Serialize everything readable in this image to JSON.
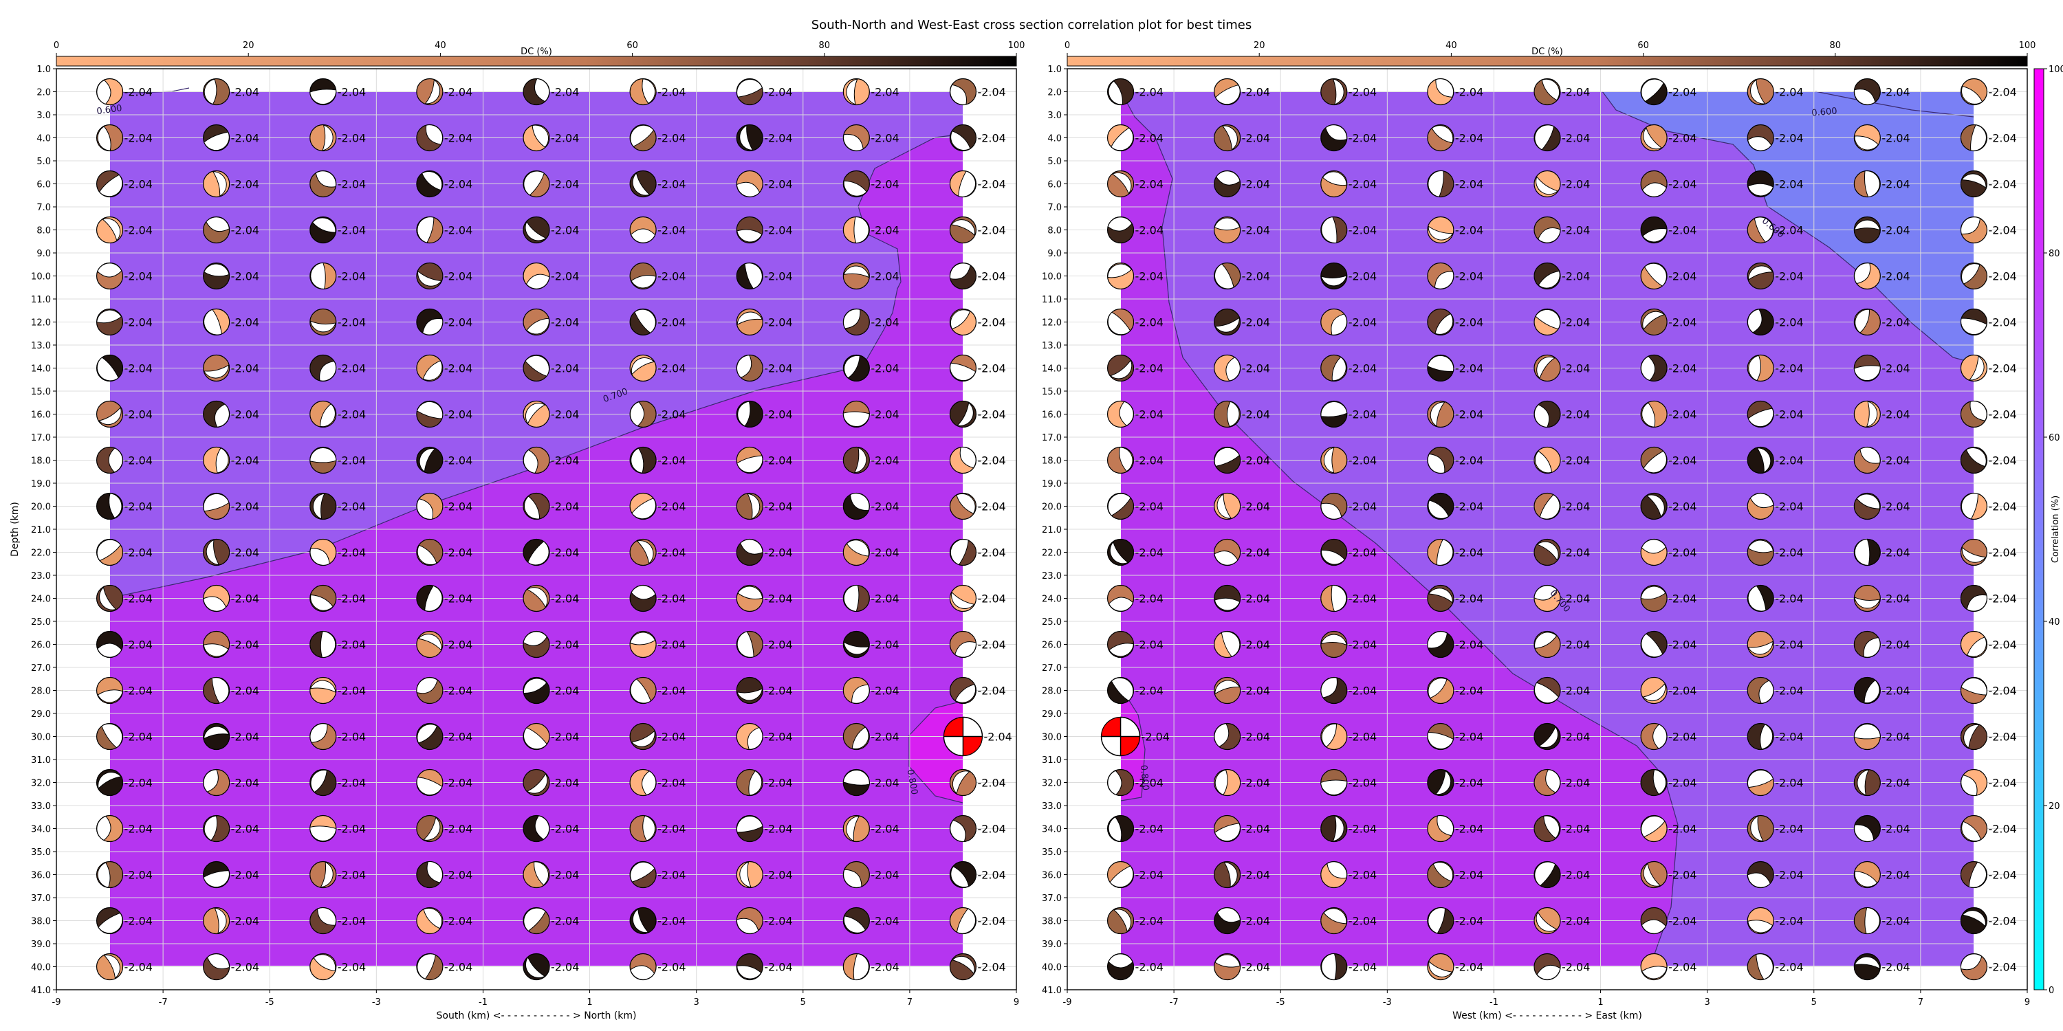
{
  "figure": {
    "title": "South-North and West-East cross section correlation plot for best times"
  },
  "colors": {
    "corr_low": "#00ffff",
    "corr_high": "#ff00ff",
    "dc_low": "#ffb27f",
    "dc_mid": "#c27a55",
    "dc_high": "#000000",
    "best_solution": "#ff0000",
    "grid": "#dcdcdc"
  },
  "chart_data": [
    {
      "type": "heatmap",
      "panel": "south-north",
      "xlabel": "South (km) <- - - - - - - - - - - > North (km)",
      "ylabel": "Depth (km)",
      "xlim": [
        -9,
        9
      ],
      "ylim": [
        41,
        1
      ],
      "x_ticks": [
        "-9",
        "-7",
        "-5",
        "-3",
        "-1",
        "1",
        "3",
        "5",
        "7",
        "9"
      ],
      "y_ticks": [
        "1.0",
        "2.0",
        "3.0",
        "4.0",
        "5.0",
        "6.0",
        "7.0",
        "8.0",
        "9.0",
        "10.0",
        "11.0",
        "12.0",
        "13.0",
        "14.0",
        "15.0",
        "16.0",
        "17.0",
        "18.0",
        "19.0",
        "20.0",
        "21.0",
        "22.0",
        "23.0",
        "24.0",
        "25.0",
        "26.0",
        "27.0",
        "28.0",
        "29.0",
        "30.0",
        "31.0",
        "32.0",
        "33.0",
        "34.0",
        "35.0",
        "36.0",
        "37.0",
        "38.0",
        "39.0",
        "40.0",
        "41.0"
      ],
      "grid": true,
      "colorbar": {
        "label": "DC (%)",
        "range": [
          0,
          100
        ],
        "ticks": [
          "0",
          "20",
          "40",
          "60",
          "80",
          "100"
        ],
        "placement": "top"
      },
      "beachball_x": [
        -8,
        -6,
        -4,
        -2,
        0,
        2,
        4,
        6,
        8
      ],
      "beachball_depths": [
        2,
        4,
        6,
        8,
        10,
        12,
        14,
        16,
        18,
        20,
        22,
        24,
        26,
        28,
        30,
        32,
        34,
        36,
        38,
        40
      ],
      "time_label": "-2.04",
      "best_solution": {
        "x": 8,
        "depth": 30
      },
      "contour_labels": [
        {
          "text": "0.600",
          "x": -8.0,
          "depth": 2.9,
          "angle": -8
        },
        {
          "text": "0.700",
          "x": 1.5,
          "depth": 15.3,
          "angle": -20
        },
        {
          "text": "0.800",
          "x": 7.0,
          "depth": 32.0,
          "angle": 80
        }
      ]
    },
    {
      "type": "heatmap",
      "panel": "west-east",
      "xlabel": "West (km) <- - - - - - - - - - - > East (km)",
      "ylabel": "",
      "xlim": [
        -9,
        9
      ],
      "ylim": [
        41,
        1
      ],
      "x_ticks": [
        "-9",
        "-7",
        "-5",
        "-3",
        "-1",
        "1",
        "3",
        "5",
        "7",
        "9"
      ],
      "y_ticks": [
        "1.0",
        "2.0",
        "3.0",
        "4.0",
        "5.0",
        "6.0",
        "7.0",
        "8.0",
        "9.0",
        "10.0",
        "11.0",
        "12.0",
        "13.0",
        "14.0",
        "15.0",
        "16.0",
        "17.0",
        "18.0",
        "19.0",
        "20.0",
        "21.0",
        "22.0",
        "23.0",
        "24.0",
        "25.0",
        "26.0",
        "27.0",
        "28.0",
        "29.0",
        "30.0",
        "31.0",
        "32.0",
        "33.0",
        "34.0",
        "35.0",
        "36.0",
        "37.0",
        "38.0",
        "39.0",
        "40.0",
        "41.0"
      ],
      "grid": true,
      "colorbar": {
        "label": "DC (%)",
        "range": [
          0,
          100
        ],
        "ticks": [
          "0",
          "20",
          "40",
          "60",
          "80",
          "100"
        ],
        "placement": "top"
      },
      "corr_colorbar": {
        "label": "Correlation (%)",
        "range": [
          0,
          100
        ],
        "ticks": [
          "0",
          "20",
          "40",
          "60",
          "80",
          "100"
        ],
        "placement": "right"
      },
      "beachball_x": [
        -8,
        -6,
        -4,
        -2,
        0,
        2,
        4,
        6,
        8
      ],
      "beachball_depths": [
        2,
        4,
        6,
        8,
        10,
        12,
        14,
        16,
        18,
        20,
        22,
        24,
        26,
        28,
        30,
        32,
        34,
        36,
        38,
        40
      ],
      "time_label": "-2.04",
      "best_solution": {
        "x": -8,
        "depth": 30
      },
      "contour_labels": [
        {
          "text": "0.600",
          "x": 5.2,
          "depth": 3.0,
          "angle": -5
        },
        {
          "text": "0.600",
          "x": 4.2,
          "depth": 8.0,
          "angle": 40
        },
        {
          "text": "0.700",
          "x": 0.2,
          "depth": 24.2,
          "angle": 50
        },
        {
          "text": "0.800",
          "x": -7.6,
          "depth": 31.8,
          "angle": 85
        }
      ]
    }
  ]
}
